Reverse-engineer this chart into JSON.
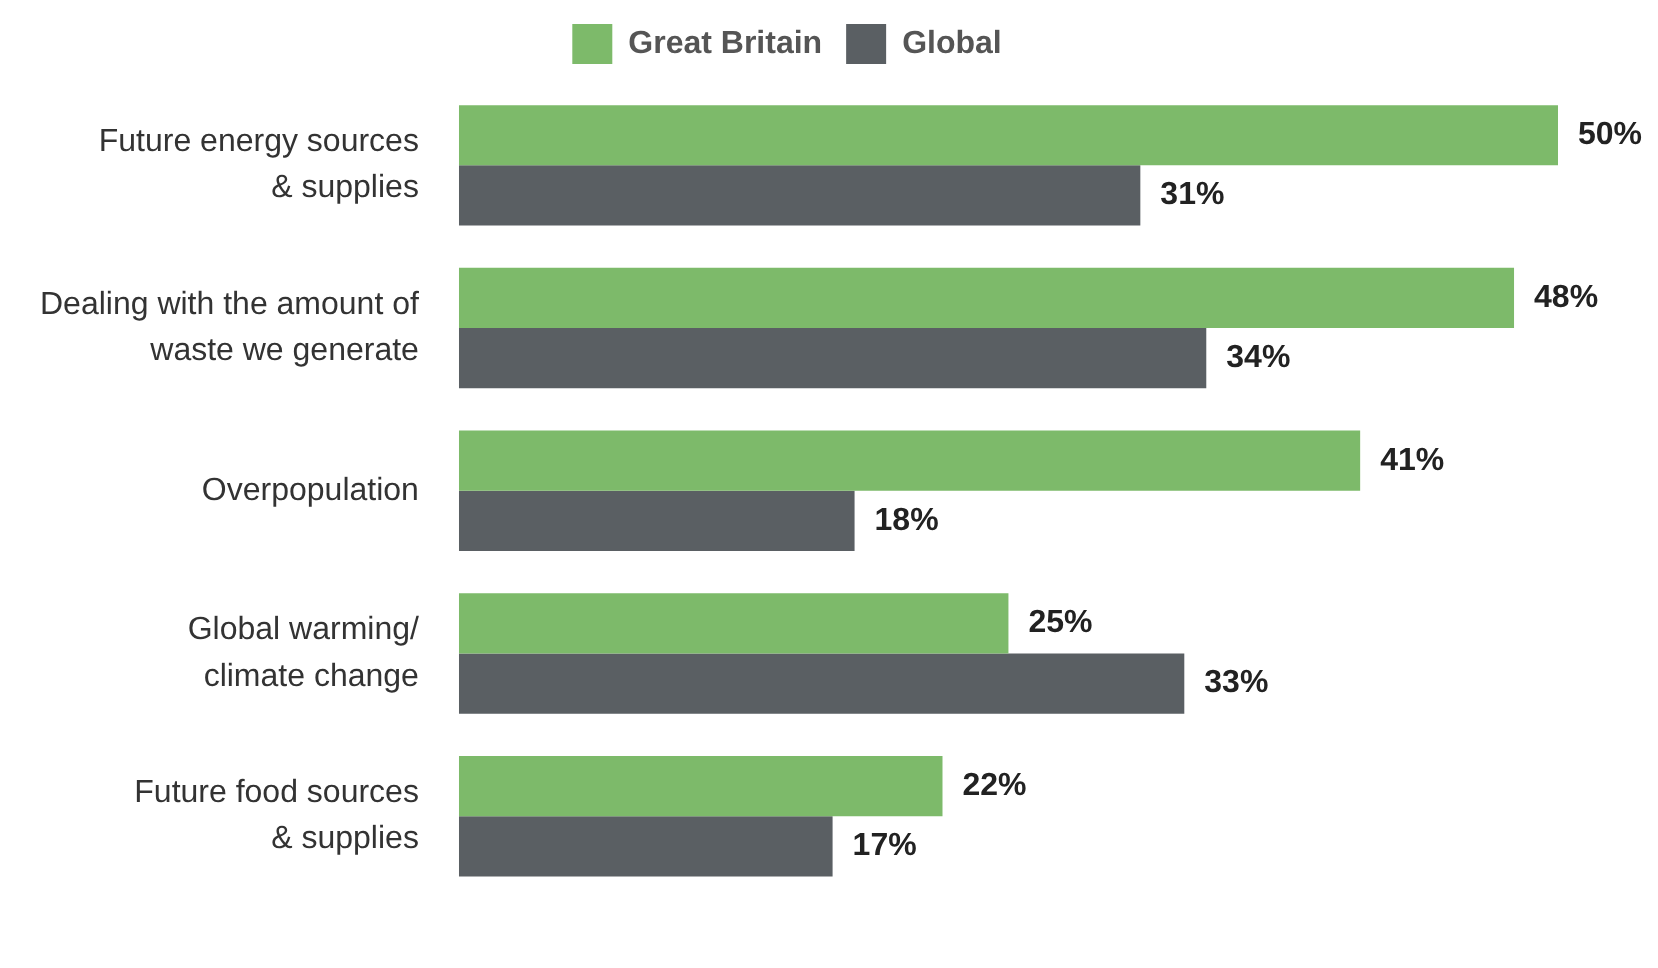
{
  "chart_data": {
    "type": "bar",
    "orientation": "horizontal",
    "legend": "top",
    "categories": [
      "Future energy sources\n& supplies",
      "Dealing with the amount of\nwaste we generate",
      "Overpopulation",
      "Global warming/\nclimate change",
      "Future food sources\n& supplies"
    ],
    "series": [
      {
        "name": "Great Britain",
        "color": "#7dba6a",
        "values": [
          50,
          48,
          41,
          25,
          22
        ],
        "value_labels": [
          "50%",
          "48%",
          "41%",
          "25%",
          "22%"
        ]
      },
      {
        "name": "Global",
        "color": "#5a5f63",
        "values": [
          31,
          34,
          18,
          33,
          17
        ],
        "value_labels": [
          "31%",
          "34%",
          "18%",
          "33%",
          "17%"
        ]
      }
    ]
  }
}
